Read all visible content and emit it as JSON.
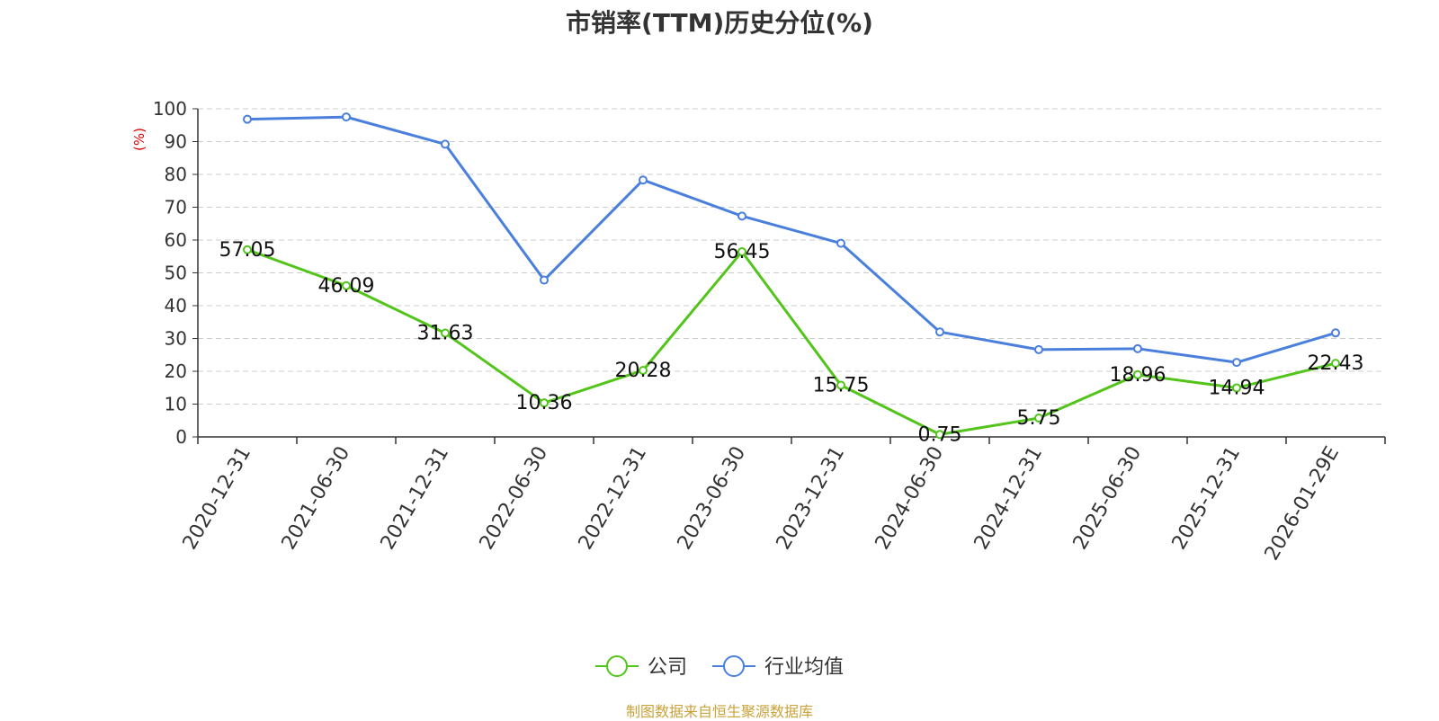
{
  "chart_data": {
    "type": "line",
    "title": "市销率(TTM)历史分位(%)",
    "ylabel": "(%)",
    "xlabel": "",
    "categories": [
      "2020-12-31",
      "2021-06-30",
      "2021-12-31",
      "2022-06-30",
      "2022-12-31",
      "2023-06-30",
      "2023-12-31",
      "2024-06-30",
      "2024-12-31",
      "2025-06-30",
      "2025-12-31",
      "2026-01-29E"
    ],
    "y_ticks": [
      "0",
      "10",
      "20",
      "30",
      "40",
      "50",
      "60",
      "70",
      "80",
      "90",
      "100"
    ],
    "ylim": [
      0,
      100
    ],
    "grid": true,
    "legend_position": "bottom-center",
    "series": [
      {
        "name": "公司",
        "color": "#52c41a",
        "values": [
          57.05,
          46.09,
          31.63,
          10.36,
          20.28,
          56.45,
          15.75,
          0.75,
          5.75,
          18.96,
          14.94,
          22.43
        ],
        "labels": [
          "57.05",
          "46.09",
          "31.63",
          "10.36",
          "20.28",
          "56.45",
          "15.75",
          "0.75",
          "5.75",
          "18.96",
          "14.94",
          "22.43"
        ]
      },
      {
        "name": "行业均值",
        "color": "#4a7fdc",
        "values": [
          96.8,
          97.5,
          89.2,
          47.8,
          78.3,
          67.3,
          59.0,
          32.0,
          26.6,
          26.9,
          22.7,
          31.7
        ]
      }
    ]
  },
  "source_note": "制图数据来自恒生聚源数据库",
  "colors": {
    "axis": "#333333",
    "grid": "#cccccc",
    "ylabel": "#e00000",
    "source": "#c9a23a"
  }
}
